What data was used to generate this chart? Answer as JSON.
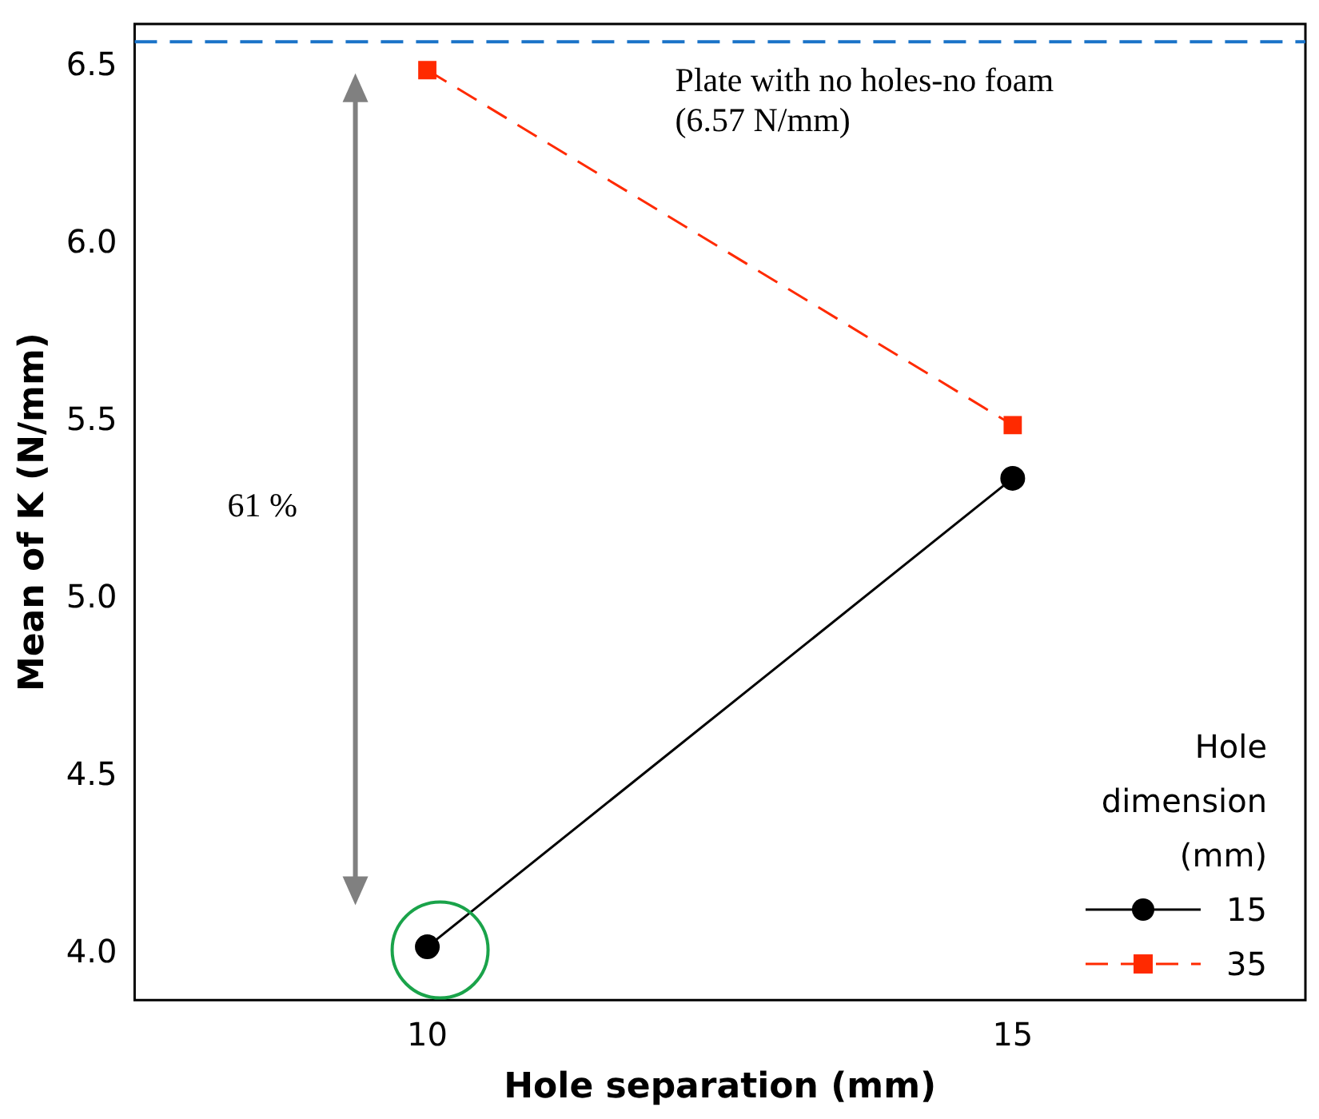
{
  "chart_data": {
    "type": "line",
    "xlabel": "Hole separation (mm)",
    "ylabel": "Mean of K (N/mm)",
    "legend_title": "Hole dimension (mm)",
    "legend": "bottom right",
    "grid": false,
    "x": [
      10,
      15
    ],
    "xlim": [
      7.5,
      17.5
    ],
    "xticks": [
      10,
      15
    ],
    "ylim": [
      3.87,
      6.62
    ],
    "yticks": [
      {
        "value": 4,
        "label": "4.0"
      },
      {
        "value": 4.5,
        "label": "4.5"
      },
      {
        "value": 5,
        "label": "5.0"
      },
      {
        "value": 5.5,
        "label": "5.5"
      },
      {
        "value": 6,
        "label": "6.0"
      },
      {
        "value": 6.5,
        "label": "6.5"
      }
    ],
    "series": [
      {
        "name": "15",
        "color": "#000000",
        "values": [
          4.02,
          5.34
        ],
        "marker": "circle",
        "line_style": "solid"
      },
      {
        "name": "35",
        "color": "#ff2a00",
        "values": [
          6.49,
          5.49
        ],
        "marker": "square",
        "line_style": "dashed"
      }
    ],
    "ref_lines": [
      {
        "axis": "y",
        "value": 6.57,
        "label": "Plate with no holes-no foam (6.57 N/mm)",
        "color": "#1a73c8",
        "line_style": "dashed"
      }
    ],
    "annotations": [
      "61 %"
    ]
  }
}
